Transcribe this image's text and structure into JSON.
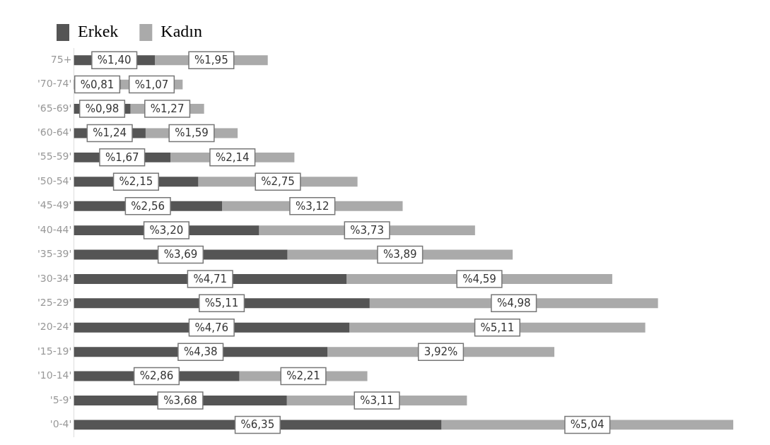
{
  "chart_data": {
    "type": "bar",
    "orientation": "horizontal",
    "stacked": true,
    "legend": "top left",
    "grid": false,
    "tick_labels": "y",
    "categories": [
      "75+",
      "'70-74'",
      "'65-69'",
      "'60-64'",
      "'55-59'",
      "'50-54'",
      "'45-49'",
      "'40-44'",
      "'35-39'",
      "'30-34'",
      "'25-29'",
      "'20-24'",
      "'15-19'",
      "'10-14'",
      "'5-9'",
      "'0-4'"
    ],
    "series": [
      {
        "name": "Erkek",
        "color": "#555555",
        "values": [
          1.4,
          0.81,
          0.98,
          1.24,
          1.67,
          2.15,
          2.56,
          3.2,
          3.69,
          4.71,
          5.11,
          4.76,
          4.38,
          2.86,
          3.68,
          6.35
        ],
        "value_labels": [
          "%1,40",
          "%0,81",
          "%0,98",
          "%1,24",
          "%1,67",
          "%2,15",
          "%2,56",
          "%3,20",
          "%3,69",
          "%4,71",
          "%5,11",
          "%4,76",
          "%4,38",
          "%2,86",
          "%3,68",
          "%6,35"
        ]
      },
      {
        "name": "Kadın",
        "color": "#aaaaaa",
        "values": [
          1.95,
          1.07,
          1.27,
          1.59,
          2.14,
          2.75,
          3.12,
          3.73,
          3.89,
          4.59,
          4.98,
          5.11,
          3.92,
          2.21,
          3.11,
          5.04
        ],
        "value_labels": [
          "%1,95",
          "%1,07",
          "%1,27",
          "%1,59",
          "%2,14",
          "%2,75",
          "%3,12",
          "%3,73",
          "%3,89",
          "%4,59",
          "%4,98",
          "%5,11",
          "3,92%",
          "%2,21",
          "%3,11",
          "%5,04"
        ]
      }
    ]
  }
}
